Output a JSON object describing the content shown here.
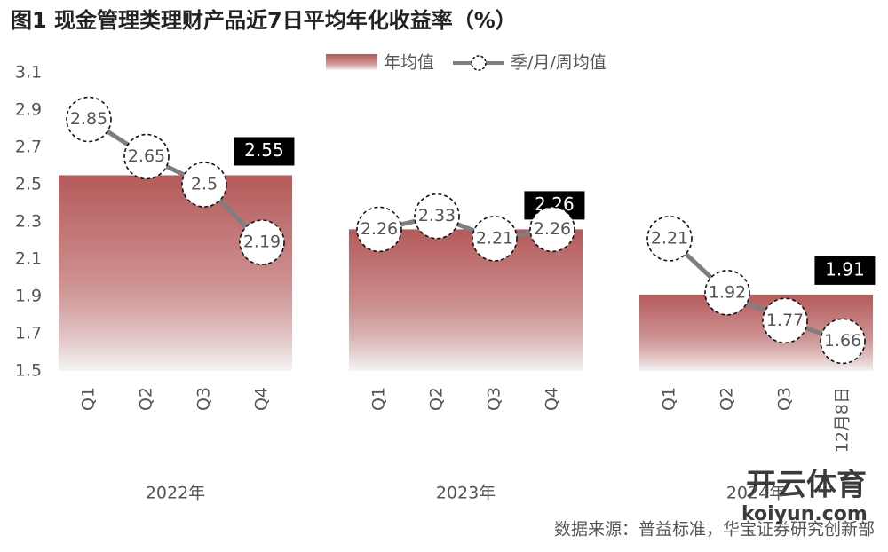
{
  "chart_data": {
    "type": "combo",
    "title": "图1  现金管理类理财产品近7日平均年化收益率（%）",
    "groups": [
      "2022年",
      "2023年",
      "2024年"
    ],
    "sub_categories": [
      [
        "Q1",
        "Q2",
        "Q3",
        "Q4"
      ],
      [
        "Q1",
        "Q2",
        "Q3",
        "Q4"
      ],
      [
        "Q1",
        "Q2",
        "Q3",
        "12月8日"
      ]
    ],
    "series": [
      {
        "name": "年均值",
        "color": "#b55a5a",
        "values": [
          2.55,
          2.26,
          1.91
        ]
      },
      {
        "name": "季/月/周均值",
        "color": "#7f7f7f",
        "values": [
          [
            2.85,
            2.65,
            2.5,
            2.19
          ],
          [
            2.26,
            2.33,
            2.21,
            2.26
          ],
          [
            2.21,
            1.92,
            1.77,
            1.66
          ]
        ]
      }
    ],
    "ylim": [
      1.5,
      3.1
    ],
    "yticks": [
      1.5,
      1.7,
      1.9,
      2.1,
      2.3,
      2.5,
      2.7,
      2.9,
      3.1
    ],
    "source": "数据来源：普益标准，华宝证券研究创新部",
    "watermark": [
      "开云体育",
      "koiyun.com"
    ]
  }
}
